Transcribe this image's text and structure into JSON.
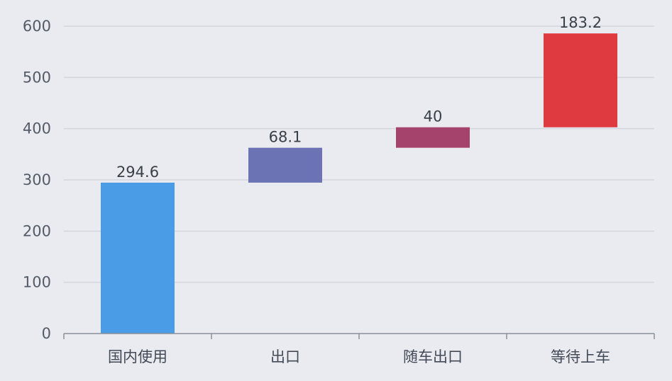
{
  "chart_data": {
    "type": "bar",
    "variant": "waterfall",
    "title": "",
    "xlabel": "",
    "ylabel": "",
    "categories": [
      "国内使用",
      "出口",
      "随车出口",
      "等待上车"
    ],
    "values": [
      294.6,
      68.1,
      40,
      183.2
    ],
    "value_labels": [
      "294.6",
      "68.1",
      "40",
      "183.2"
    ],
    "ylim": [
      0,
      600
    ],
    "yticks": [
      0,
      100,
      200,
      300,
      400,
      500,
      600
    ],
    "ytick_labels": [
      "0",
      "100",
      "200",
      "300",
      "400",
      "500",
      "600"
    ],
    "grid": true,
    "legend": "none",
    "colors": [
      "#4a9ce6",
      "#6c73b4",
      "#a6436c",
      "#e03a41"
    ]
  }
}
